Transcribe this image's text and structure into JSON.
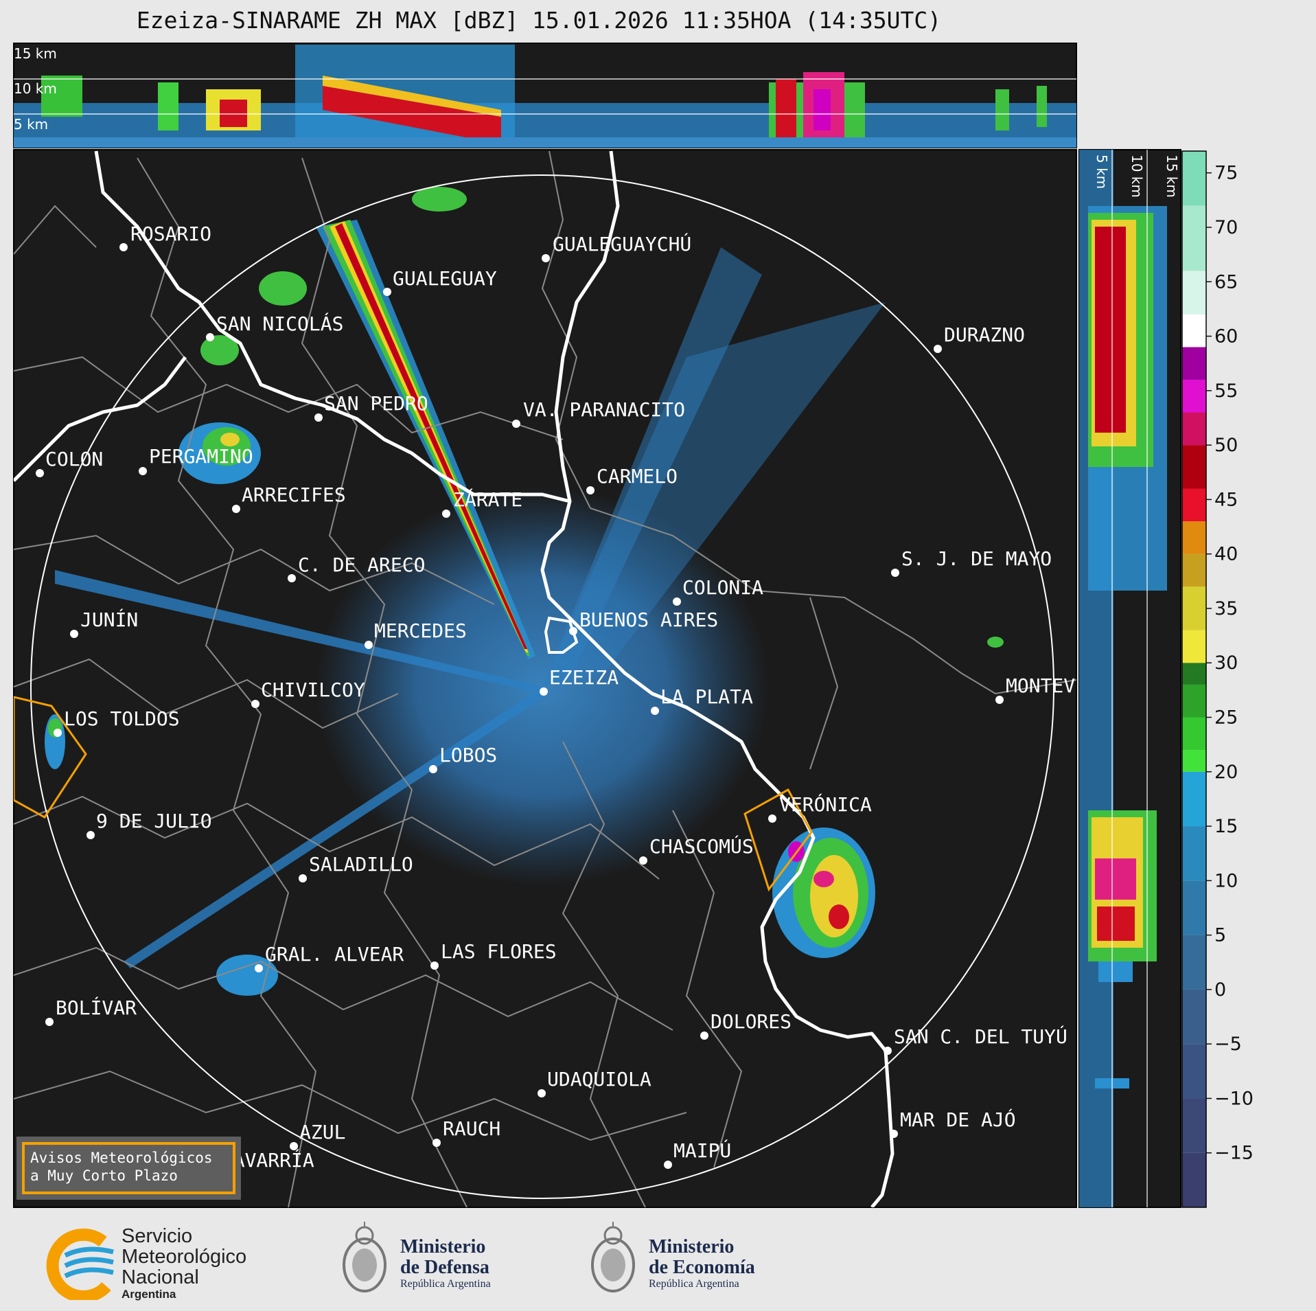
{
  "title": "Ezeiza-SINARAME ZH MAX [dBZ] 15.01.2026 11:35HOA (14:35UTC)",
  "cross_section_top": {
    "height_labels": [
      "15 km",
      "10 km",
      "5 km"
    ]
  },
  "cross_section_right": {
    "height_labels": [
      "5 km",
      "10 km",
      "15 km"
    ]
  },
  "colorbar": {
    "ticks": [
      "75",
      "70",
      "65",
      "60",
      "55",
      "50",
      "45",
      "40",
      "35",
      "30",
      "25",
      "20",
      "15",
      "10",
      "5",
      "0",
      "−5",
      "−10",
      "−15"
    ],
    "range_dbz": [
      -20,
      77
    ]
  },
  "cities": [
    {
      "name": "ROSARIO"
    },
    {
      "name": "GUALEGUAYCHÚ"
    },
    {
      "name": "GUALEGUAY"
    },
    {
      "name": "SAN NICOLÁS"
    },
    {
      "name": "DURAZNO"
    },
    {
      "name": "SAN PEDRO"
    },
    {
      "name": "VA. PARANACITO"
    },
    {
      "name": "COLON"
    },
    {
      "name": "PERGAMINO"
    },
    {
      "name": "CARMELO"
    },
    {
      "name": "ARRECIFES"
    },
    {
      "name": "ZÁRATE"
    },
    {
      "name": "S. J. DE MAYO"
    },
    {
      "name": "C. DE ARECO"
    },
    {
      "name": "COLONIA"
    },
    {
      "name": "JUNÍN"
    },
    {
      "name": "BUENOS AIRES"
    },
    {
      "name": "MERCEDES"
    },
    {
      "name": "EZEIZA"
    },
    {
      "name": "CHIVILCOY"
    },
    {
      "name": "LA PLATA"
    },
    {
      "name": "MONTEV"
    },
    {
      "name": "LOS TOLDOS"
    },
    {
      "name": "LOBOS"
    },
    {
      "name": "VERÓNICA"
    },
    {
      "name": "9 DE JULIO"
    },
    {
      "name": "CHASCOMÚS"
    },
    {
      "name": "SALADILLO"
    },
    {
      "name": "GRAL. ALVEAR"
    },
    {
      "name": "LAS FLORES"
    },
    {
      "name": "BOLÍVAR"
    },
    {
      "name": "DOLORES"
    },
    {
      "name": "SAN C. DEL TUYÚ"
    },
    {
      "name": "UDAQUIOLA"
    },
    {
      "name": "MAR DE AJÓ"
    },
    {
      "name": "AZUL"
    },
    {
      "name": "RAUCH"
    },
    {
      "name": "OLAVARRÍA"
    },
    {
      "name": "MAIPÚ"
    }
  ],
  "warning_box": {
    "line1": "Avisos Meteorológicos",
    "line2": "a Muy Corto Plazo"
  },
  "footer": {
    "smn": {
      "line1": "Servicio",
      "line2": "Meteorológico",
      "line3": "Nacional",
      "sub": "Argentina"
    },
    "defensa": {
      "line1": "Ministerio",
      "line2": "de Defensa",
      "sub": "República Argentina"
    },
    "economia": {
      "line1": "Ministerio",
      "line2": "de Economía",
      "sub": "República Argentina"
    }
  },
  "colors": {
    "background": "#e8e8e8",
    "panel": "#1b1b1b",
    "coast": "#ffffff",
    "border": "#888888",
    "warning": "#f5a000"
  }
}
